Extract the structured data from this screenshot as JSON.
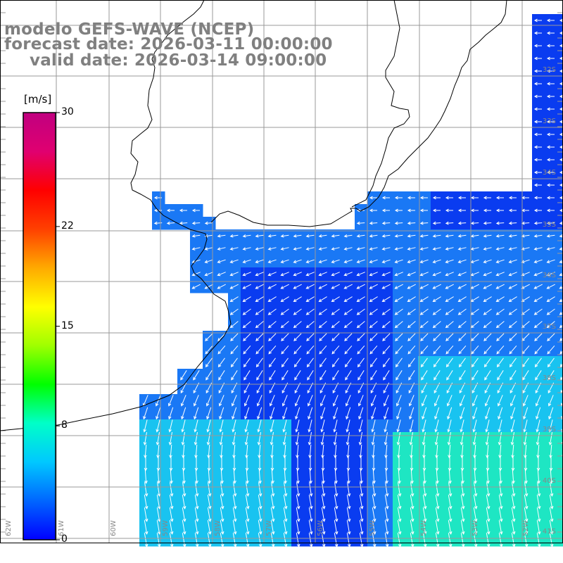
{
  "title": {
    "line1": "modelo GEFS-WAVE (NCEP)",
    "line2": "forecast date: 2026-03-11 00:00:00",
    "line3": "valid date: 2026-03-14 09:00:00"
  },
  "legend": {
    "unit": "[m/s]",
    "ticks": [
      {
        "label": "30",
        "value": 30
      },
      {
        "label": "22",
        "value": 22
      },
      {
        "label": "15",
        "value": 15
      },
      {
        "label": "8",
        "value": 8
      },
      {
        "label": "0",
        "value": 0
      }
    ],
    "colors": [
      "#0000ff",
      "#0066ff",
      "#00c8ff",
      "#00ffc8",
      "#00ff00",
      "#a0ff00",
      "#ffff00",
      "#ffaa00",
      "#ff4000",
      "#ff0000",
      "#e00070",
      "#c00080"
    ]
  },
  "map": {
    "latitude_labels": [
      "32S",
      "33S",
      "34S",
      "35S",
      "36S",
      "37S",
      "38S",
      "39S",
      "40S",
      "41S"
    ],
    "longitude_labels": [
      "62W",
      "61W",
      "60W",
      "59W",
      "58W",
      "57W",
      "56W",
      "55W",
      "54W",
      "53W",
      "52W"
    ],
    "field_colors": {
      "fast": "#0a3cf0",
      "medium": "#1a78f5",
      "slow": "#19c3f0",
      "calm": "#1ee6c3",
      "land": "#ffffff",
      "coast": "#000000",
      "grid": "#999999"
    }
  }
}
